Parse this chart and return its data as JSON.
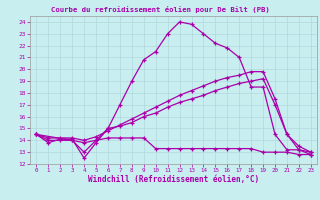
{
  "title": "Courbe du refroidissement éolien pour De Bilt (PB)",
  "xlabel": "Windchill (Refroidissement éolien,°C)",
  "bg_color": "#c8eef0",
  "grid_color": "#b0d8dc",
  "line_color": "#aa00aa",
  "xlim": [
    -0.5,
    23.5
  ],
  "ylim": [
    12,
    24.5
  ],
  "xtick_labels": [
    "0",
    "1",
    "2",
    "3",
    "4",
    "5",
    "6",
    "7",
    "8",
    "9",
    "10",
    "11",
    "12",
    "13",
    "14",
    "15",
    "16",
    "17",
    "18",
    "19",
    "20",
    "21",
    "22",
    "23"
  ],
  "ytick_labels": [
    "12",
    "13",
    "14",
    "15",
    "16",
    "17",
    "18",
    "19",
    "20",
    "21",
    "22",
    "23",
    "24"
  ],
  "line1_x": [
    0,
    1,
    2,
    3,
    4,
    5,
    6,
    7,
    8,
    9,
    10,
    11,
    12,
    13,
    14,
    15,
    16,
    17,
    18,
    19,
    20,
    21,
    22,
    23
  ],
  "line1_y": [
    14.5,
    13.8,
    14.1,
    14.1,
    12.5,
    13.8,
    15.0,
    17.0,
    19.0,
    20.8,
    21.5,
    23.0,
    24.0,
    23.8,
    23.0,
    22.2,
    21.8,
    21.0,
    18.5,
    18.5,
    14.5,
    13.2,
    13.2,
    13.0
  ],
  "line2_x": [
    0,
    3,
    4,
    5,
    6,
    7,
    8,
    9,
    10,
    11,
    12,
    13,
    14,
    15,
    16,
    17,
    18,
    19,
    20,
    21,
    22,
    23
  ],
  "line2_y": [
    14.5,
    14.0,
    13.0,
    14.0,
    15.0,
    15.2,
    15.5,
    16.0,
    16.3,
    16.8,
    17.2,
    17.5,
    17.8,
    18.2,
    18.5,
    18.8,
    19.0,
    19.2,
    17.0,
    14.5,
    13.2,
    12.8
  ],
  "line3_x": [
    0,
    1,
    2,
    3,
    4,
    5,
    6,
    7,
    8,
    9,
    10,
    11,
    12,
    13,
    14,
    15,
    16,
    17,
    18,
    19,
    20,
    21,
    22,
    23
  ],
  "line3_y": [
    14.5,
    14.0,
    14.0,
    14.0,
    13.8,
    14.0,
    14.2,
    14.2,
    14.2,
    14.2,
    13.3,
    13.3,
    13.3,
    13.3,
    13.3,
    13.3,
    13.3,
    13.3,
    13.3,
    13.0,
    13.0,
    13.0,
    12.8,
    12.8
  ],
  "line4_x": [
    0,
    1,
    2,
    3,
    4,
    5,
    6,
    7,
    8,
    9,
    10,
    11,
    12,
    13,
    14,
    15,
    16,
    17,
    18,
    19,
    20,
    21,
    22,
    23
  ],
  "line4_y": [
    14.5,
    14.2,
    14.2,
    14.2,
    14.0,
    14.3,
    14.8,
    15.3,
    15.8,
    16.3,
    16.8,
    17.3,
    17.8,
    18.2,
    18.6,
    19.0,
    19.3,
    19.5,
    19.8,
    19.8,
    17.5,
    14.5,
    13.5,
    13.0
  ]
}
